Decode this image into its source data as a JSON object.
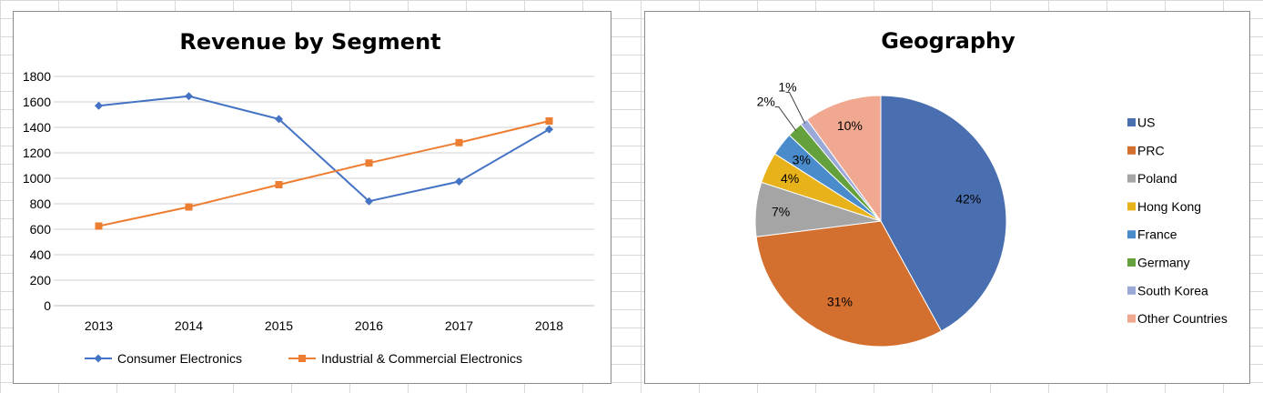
{
  "chart_data": [
    {
      "type": "line",
      "title": "Revenue by Segment",
      "xlabel": "",
      "ylabel": "",
      "categories": [
        "2013",
        "2014",
        "2015",
        "2016",
        "2017",
        "2018"
      ],
      "ylim": [
        0,
        1800
      ],
      "yticks": [
        "0",
        "200",
        "400",
        "600",
        "800",
        "1000",
        "1200",
        "1400",
        "1600",
        "1800"
      ],
      "grid": true,
      "legend_position": "bottom",
      "series": [
        {
          "name": "Consumer Electronics",
          "values": [
            1570,
            1645,
            1465,
            820,
            975,
            1385
          ],
          "color": "#4472c4",
          "marker": "diamond"
        },
        {
          "name": "Industrial & Commercial Electronics",
          "values": [
            625,
            775,
            950,
            1120,
            1280,
            1450
          ],
          "color": "#ed7d31",
          "marker": "square"
        }
      ]
    },
    {
      "type": "pie",
      "title": "Geography",
      "legend_position": "right",
      "slices": [
        {
          "label": "US",
          "value": 42,
          "display": "42%",
          "color": "#4a6fb0"
        },
        {
          "label": "PRC",
          "value": 31,
          "display": "31%",
          "color": "#d4702f"
        },
        {
          "label": "Poland",
          "value": 7,
          "display": "7%",
          "color": "#a5a5a5"
        },
        {
          "label": "Hong Kong",
          "value": 4,
          "display": "4%",
          "color": "#e8b21a"
        },
        {
          "label": "France",
          "value": 3,
          "display": "3%",
          "color": "#4a8ccb"
        },
        {
          "label": "Germany",
          "value": 2,
          "display": "2%",
          "color": "#64a03c"
        },
        {
          "label": "South Korea",
          "value": 1,
          "display": "1%",
          "color": "#9aa9d8"
        },
        {
          "label": "Other Countries",
          "value": 10,
          "display": "10%",
          "color": "#f0a890"
        }
      ]
    }
  ]
}
